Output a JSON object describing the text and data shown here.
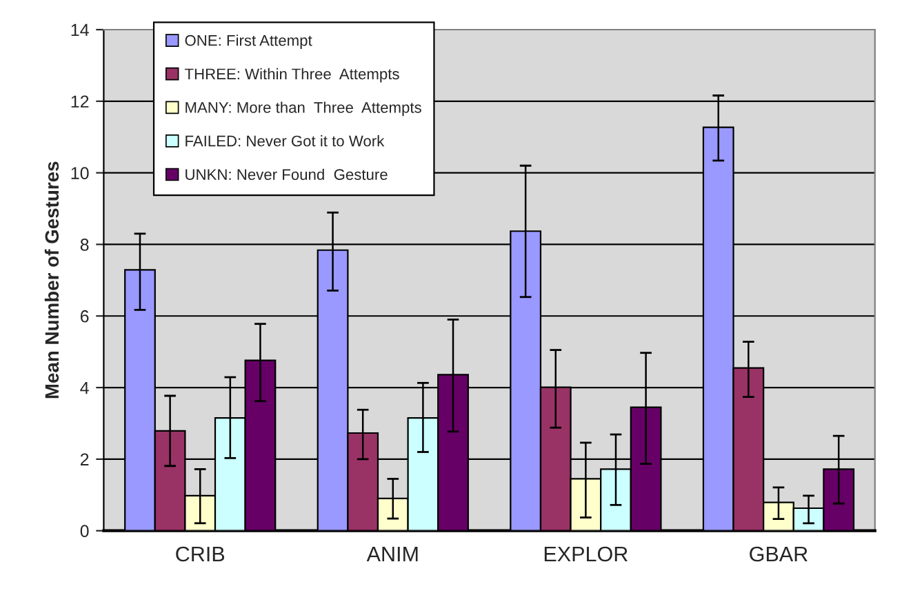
{
  "chart_data": {
    "type": "bar",
    "ylabel": "Mean Number of Gestures",
    "categories": [
      "CRIB",
      "ANIM",
      "EXPLOR",
      "GBAR"
    ],
    "series": [
      {
        "name": "ONE: First Attempt",
        "color": "#9999ff",
        "values": [
          7.29,
          7.84,
          8.37,
          11.27
        ],
        "errors": [
          [
            6.17,
            8.3
          ],
          [
            6.71,
            8.89
          ],
          [
            6.53,
            10.2
          ],
          [
            10.34,
            12.16
          ]
        ]
      },
      {
        "name": "THREE: Within Three  Attempts",
        "color": "#993366",
        "values": [
          2.79,
          2.73,
          4.01,
          4.55
        ],
        "errors": [
          [
            1.81,
            3.77
          ],
          [
            2.0,
            3.38
          ],
          [
            2.88,
            5.05
          ],
          [
            3.74,
            5.28
          ]
        ]
      },
      {
        "name": "MANY: More than  Three  Attempts",
        "color": "#ffffcc",
        "values": [
          0.98,
          0.9,
          1.45,
          0.79
        ],
        "errors": [
          [
            0.21,
            1.72
          ],
          [
            0.34,
            1.45
          ],
          [
            0.37,
            2.46
          ],
          [
            0.33,
            1.21
          ]
        ]
      },
      {
        "name": "FAILED: Never Got it to Work",
        "color": "#ccffff",
        "values": [
          3.15,
          3.15,
          1.72,
          0.63
        ],
        "errors": [
          [
            2.03,
            4.29
          ],
          [
            2.2,
            4.13
          ],
          [
            0.72,
            2.69
          ],
          [
            0.21,
            0.98
          ]
        ]
      },
      {
        "name": "UNKN: Never Found  Gesture",
        "color": "#660066",
        "values": [
          4.76,
          4.36,
          3.45,
          1.72
        ],
        "errors": [
          [
            3.62,
            5.78
          ],
          [
            2.77,
            5.9
          ],
          [
            1.87,
            4.97
          ],
          [
            0.76,
            2.65
          ]
        ]
      }
    ],
    "ylim": [
      0,
      14
    ],
    "yticks": [
      0,
      2,
      4,
      6,
      8,
      10,
      12,
      14
    ],
    "grid": "y",
    "legend": "top left"
  }
}
